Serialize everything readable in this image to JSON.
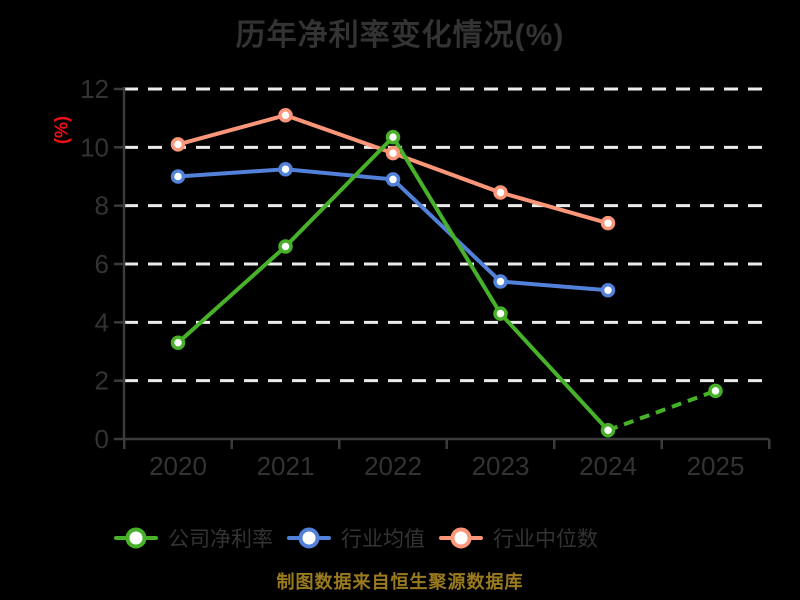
{
  "colors": {
    "background": "#000000",
    "text": "#333333",
    "axis": "#3b3b3b",
    "grid": "#ebebeb",
    "ylabel_red": "#ee1111",
    "caption_gold": "#9a7a1e"
  },
  "chart_data": {
    "type": "line",
    "title": "历年净利率变化情况(%)",
    "ylabel": "(%)",
    "xlabel": "",
    "source_caption": "制图数据来自恒生聚源数据库",
    "categories": [
      "2020",
      "2021",
      "2022",
      "2023",
      "2024",
      "2025"
    ],
    "series": [
      {
        "name": "公司净利率",
        "color": "#47b229",
        "values": [
          3.3,
          6.6,
          10.35,
          4.3,
          0.3,
          1.65
        ],
        "dashed_from_index": 4
      },
      {
        "name": "行业均值",
        "color": "#5181d8",
        "values": [
          9.0,
          9.25,
          8.9,
          5.4,
          5.1,
          null
        ]
      },
      {
        "name": "行业中位数",
        "color": "#fb9678",
        "values": [
          10.1,
          11.1,
          9.8,
          8.45,
          7.4,
          null
        ]
      }
    ],
    "ylim": [
      0,
      12
    ],
    "yticks": [
      0,
      2,
      4,
      6,
      8,
      10,
      12
    ],
    "grid": "horizontal-dashed-white",
    "legend_position": "bottom",
    "marker": "circle-white-fill-colored-ring"
  }
}
